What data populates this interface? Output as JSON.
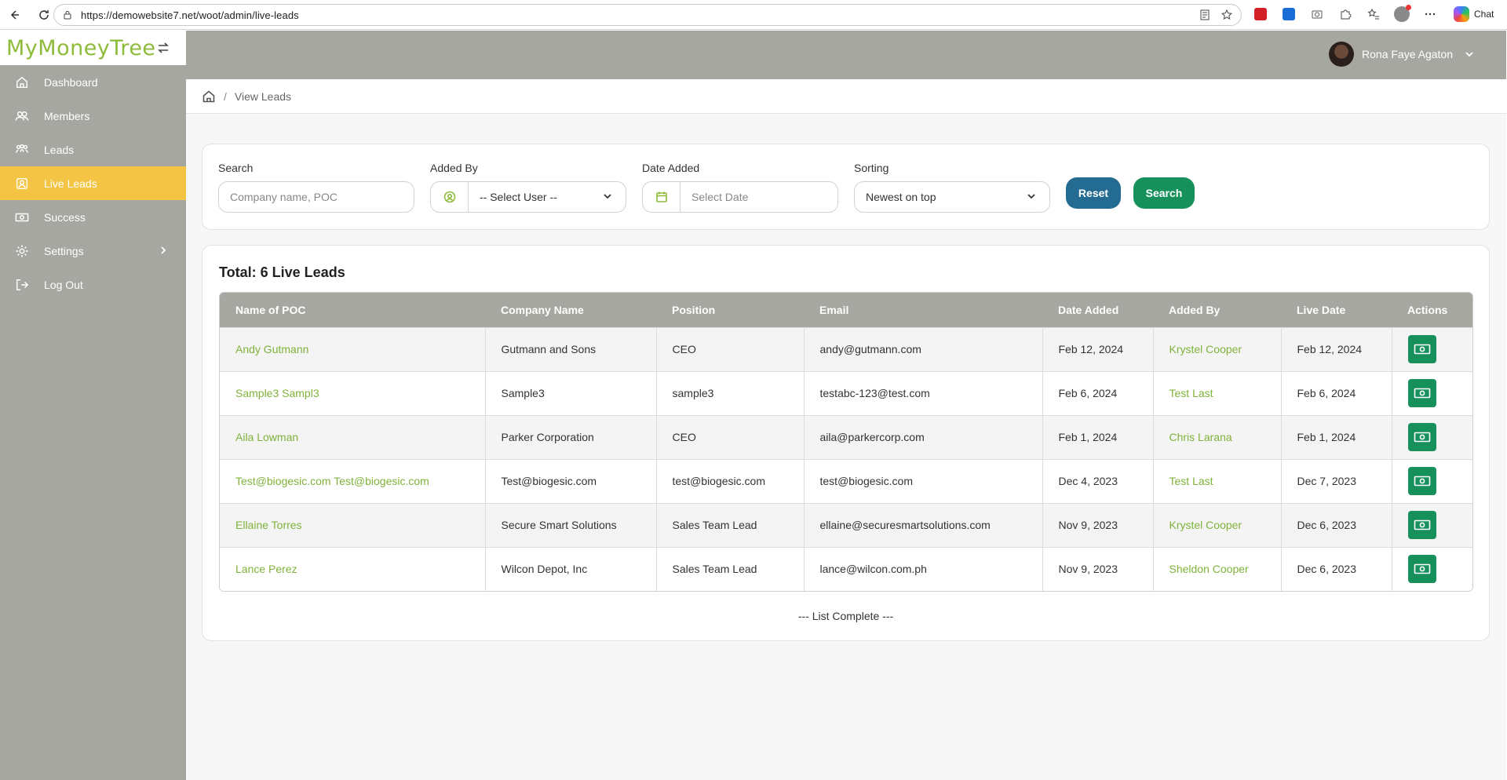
{
  "browser": {
    "url": "https://demowebsite7.net/woot/admin/live-leads",
    "chat_label": "Chat"
  },
  "brand": {
    "name": "MyMoneyTree",
    "color": "#8dbb3a"
  },
  "sidebar": {
    "items": [
      {
        "label": "Dashboard",
        "icon": "home-icon"
      },
      {
        "label": "Members",
        "icon": "members-icon"
      },
      {
        "label": "Leads",
        "icon": "leads-icon"
      },
      {
        "label": "Live Leads",
        "icon": "live-leads-icon",
        "active": true
      },
      {
        "label": "Success",
        "icon": "money-icon"
      },
      {
        "label": "Settings",
        "icon": "gear-icon"
      },
      {
        "label": "Log Out",
        "icon": "logout-icon"
      }
    ]
  },
  "header": {
    "user_name": "Rona Faye Agaton"
  },
  "breadcrumb": {
    "current": "View Leads",
    "separator": "/"
  },
  "filters": {
    "search_label": "Search",
    "search_placeholder": "Company name, POC",
    "added_by_label": "Added By",
    "added_by_value": "-- Select User --",
    "date_added_label": "Date Added",
    "date_placeholder": "Select Date",
    "sorting_label": "Sorting",
    "sorting_value": "Newest on top",
    "reset_label": "Reset",
    "search_button_label": "Search"
  },
  "leads": {
    "total_text": "Total: 6 Live Leads",
    "columns": [
      "Name of POC",
      "Company Name",
      "Position",
      "Email",
      "Date Added",
      "Added By",
      "Live Date",
      "Actions"
    ],
    "rows": [
      {
        "poc": "Andy Gutmann",
        "company": "Gutmann and Sons",
        "position": "CEO",
        "email": "andy@gutmann.com",
        "date_added": "Feb 12, 2024",
        "added_by": "Krystel Cooper",
        "live_date": "Feb 12, 2024"
      },
      {
        "poc": "Sample3 Sampl3",
        "company": "Sample3",
        "position": "sample3",
        "email": "testabc-123@test.com",
        "date_added": "Feb 6, 2024",
        "added_by": "Test Last",
        "live_date": "Feb 6, 2024"
      },
      {
        "poc": "Aila Lowman",
        "company": "Parker Corporation",
        "position": "CEO",
        "email": "aila@parkercorp.com",
        "date_added": "Feb 1, 2024",
        "added_by": "Chris Larana",
        "live_date": "Feb 1, 2024"
      },
      {
        "poc": "Test@biogesic.com Test@biogesic.com",
        "company": "Test@biogesic.com",
        "position": "test@biogesic.com",
        "email": "test@biogesic.com",
        "date_added": "Dec 4, 2023",
        "added_by": "Test Last",
        "live_date": "Dec 7, 2023"
      },
      {
        "poc": "Ellaine Torres",
        "company": "Secure Smart Solutions",
        "position": "Sales Team Lead",
        "email": "ellaine@securesmartsolutions.com",
        "date_added": "Nov 9, 2023",
        "added_by": "Krystel Cooper",
        "live_date": "Dec 6, 2023"
      },
      {
        "poc": "Lance Perez",
        "company": "Wilcon Depot, Inc",
        "position": "Sales Team Lead",
        "email": "lance@wilcon.com.ph",
        "date_added": "Nov 9, 2023",
        "added_by": "Sheldon Cooper",
        "live_date": "Dec 6, 2023"
      }
    ],
    "list_complete_text": "--- List Complete ---"
  },
  "colors": {
    "sidebar_bg": "#a7a7a1",
    "active_item": "#f4c545",
    "link_green": "#7fb23a",
    "action_green": "#16915c",
    "reset_blue": "#246b92"
  }
}
